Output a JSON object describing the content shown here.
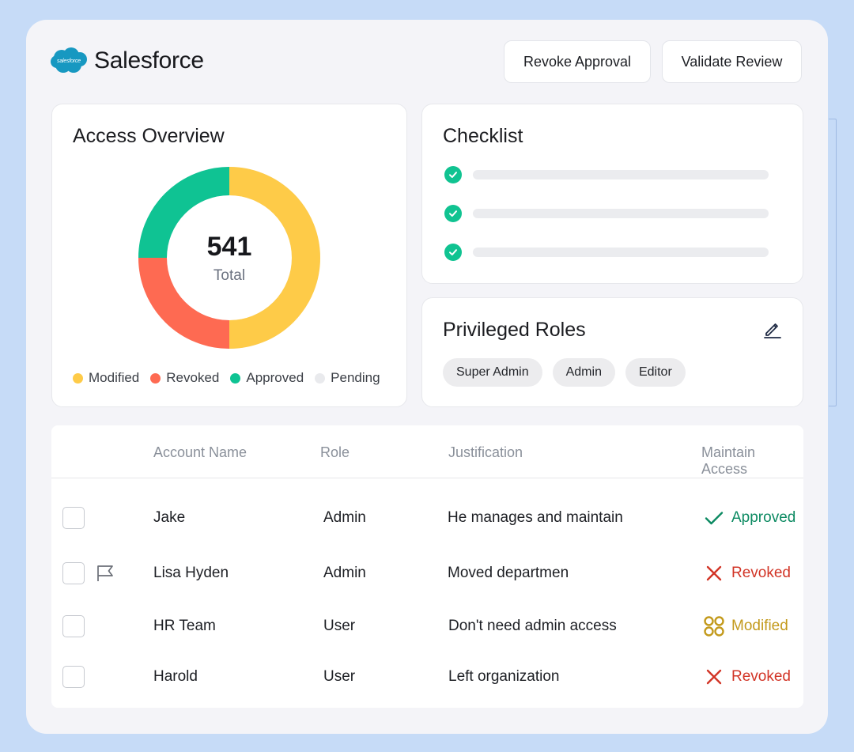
{
  "app": {
    "name": "Salesforce",
    "logo_text": "salesforce"
  },
  "toolbar": {
    "revoke_label": "Revoke Approval",
    "validate_label": "Validate Review"
  },
  "overview": {
    "title": "Access Overview",
    "total_value": "541",
    "total_label": "Total",
    "segments": [
      {
        "name": "Modified",
        "value": 50,
        "color": "#fecb48"
      },
      {
        "name": "Revoked",
        "value": 25,
        "color": "#fe6a52"
      },
      {
        "name": "Approved",
        "value": 25,
        "color": "#0fc393"
      },
      {
        "name": "Pending",
        "value": 0,
        "color": "#e9eaed"
      }
    ]
  },
  "checklist": {
    "title": "Checklist",
    "items": [
      {
        "done": true
      },
      {
        "done": true
      },
      {
        "done": true
      }
    ]
  },
  "roles": {
    "title": "Privileged Roles",
    "chips": [
      "Super Admin",
      "Admin",
      "Editor"
    ]
  },
  "table": {
    "headers": {
      "account": "Account Name",
      "role": "Role",
      "justification": "Justification",
      "maintain": "Maintain Access"
    },
    "rows": [
      {
        "account": "Jake",
        "role": "Admin",
        "justification": "He manages and maintain",
        "status": "Approved",
        "flagged": false
      },
      {
        "account": "Lisa Hyden",
        "role": "Admin",
        "justification": "Moved departmen",
        "status": "Revoked",
        "flagged": true
      },
      {
        "account": "HR Team",
        "role": "User",
        "justification": "Don't need admin access",
        "status": "Modified",
        "flagged": false
      },
      {
        "account": "Harold",
        "role": "User",
        "justification": "Left organization",
        "status": "Revoked",
        "flagged": false
      }
    ]
  },
  "colors": {
    "approved": "#0c8a62",
    "revoked": "#d23527",
    "modified": "#c39a1c"
  }
}
